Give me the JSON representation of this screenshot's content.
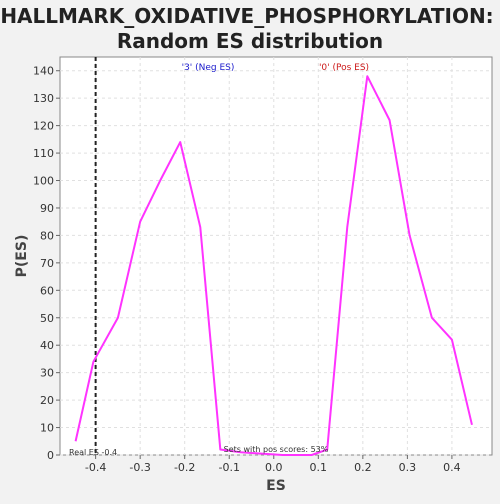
{
  "chart_data": {
    "type": "line",
    "title": "HALLMARK_OXIDATIVE_PHOSPHORYLATION:",
    "subtitle": "Random ES distribution",
    "xlabel": "ES",
    "ylabel": "P(ES)",
    "xlim": [
      -0.48,
      0.49
    ],
    "ylim": [
      0,
      145
    ],
    "x_ticks": [
      -0.4,
      -0.3,
      -0.2,
      -0.1,
      0.0,
      0.1,
      0.2,
      0.3,
      0.4
    ],
    "y_ticks": [
      0,
      10,
      20,
      30,
      40,
      50,
      60,
      70,
      80,
      90,
      100,
      110,
      120,
      130,
      140
    ],
    "grid": true,
    "series": [
      {
        "color": "#ff33ff",
        "x": [
          -0.445,
          -0.405,
          -0.35,
          -0.3,
          -0.255,
          -0.21,
          -0.165,
          -0.12,
          -0.075,
          0.02,
          0.085,
          0.12,
          0.165,
          0.21,
          0.26,
          0.305,
          0.355,
          0.4,
          0.445
        ],
        "y": [
          5,
          34,
          50,
          85,
          100,
          114,
          83,
          2,
          1,
          0,
          0,
          2,
          83,
          138,
          122,
          80,
          50,
          42,
          11
        ]
      }
    ],
    "real_es": -0.4,
    "annotations": {
      "neg_label": "'3' (Neg ES)",
      "pos_label": "'0' (Pos ES)",
      "sets_label": "Sets with pos scores: 53%",
      "real_es_label": "Real ES -0.4"
    },
    "colors": {
      "neg_label": "#1a1acc",
      "pos_label": "#cc1a1a",
      "real_es_line": "#222222"
    }
  }
}
